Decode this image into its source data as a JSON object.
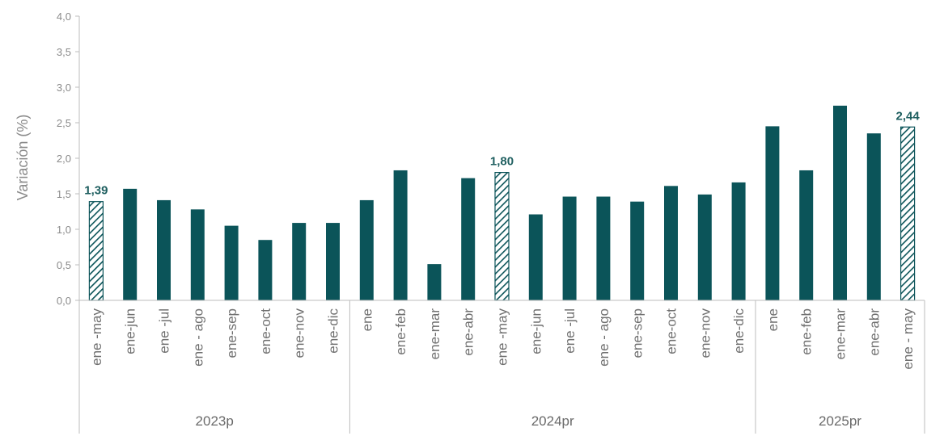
{
  "chart_data": {
    "type": "bar",
    "ylabel": "Variación (%)",
    "ylim": [
      0,
      4.0
    ],
    "yticks": [
      "0,0",
      "0,5",
      "1,0",
      "1,5",
      "2,0",
      "2,5",
      "3,0",
      "3,5",
      "4,0"
    ],
    "grid": false,
    "colors": {
      "solid": "#0b5459",
      "hatch": "#0b5459"
    },
    "groups": [
      {
        "label": "2023p",
        "categories": [
          "ene -may",
          "ene-jun",
          "ene -jul",
          "ene - ago",
          "ene-sep",
          "ene-oct",
          "ene-nov",
          "ene-dic"
        ],
        "values": [
          1.39,
          1.57,
          1.41,
          1.28,
          1.05,
          0.85,
          1.09,
          1.09
        ],
        "highlight": [
          true,
          false,
          false,
          false,
          false,
          false,
          false,
          false
        ],
        "labels": [
          "1,39",
          "",
          "",
          "",
          "",
          "",
          "",
          ""
        ]
      },
      {
        "label": "2024pr",
        "categories": [
          "ene",
          "ene-feb",
          "ene-mar",
          "ene-abr",
          "ene -may",
          "ene-jun",
          "ene -jul",
          "ene - ago",
          "ene-sep",
          "ene-oct",
          "ene-nov",
          "ene-dic"
        ],
        "values": [
          1.41,
          1.83,
          0.51,
          1.72,
          1.8,
          1.21,
          1.46,
          1.46,
          1.39,
          1.61,
          1.49,
          1.66
        ],
        "highlight": [
          false,
          false,
          false,
          false,
          true,
          false,
          false,
          false,
          false,
          false,
          false,
          false
        ],
        "labels": [
          "",
          "",
          "",
          "",
          "1,80",
          "",
          "",
          "",
          "",
          "",
          "",
          ""
        ]
      },
      {
        "label": "2025pr",
        "categories": [
          "ene",
          "ene-feb",
          "ene-mar",
          "ene-abr",
          "ene - may"
        ],
        "values": [
          2.45,
          1.83,
          2.74,
          2.35,
          2.44
        ],
        "highlight": [
          false,
          false,
          false,
          false,
          true
        ],
        "labels": [
          "",
          "",
          "",
          "",
          "2,44"
        ]
      }
    ]
  }
}
